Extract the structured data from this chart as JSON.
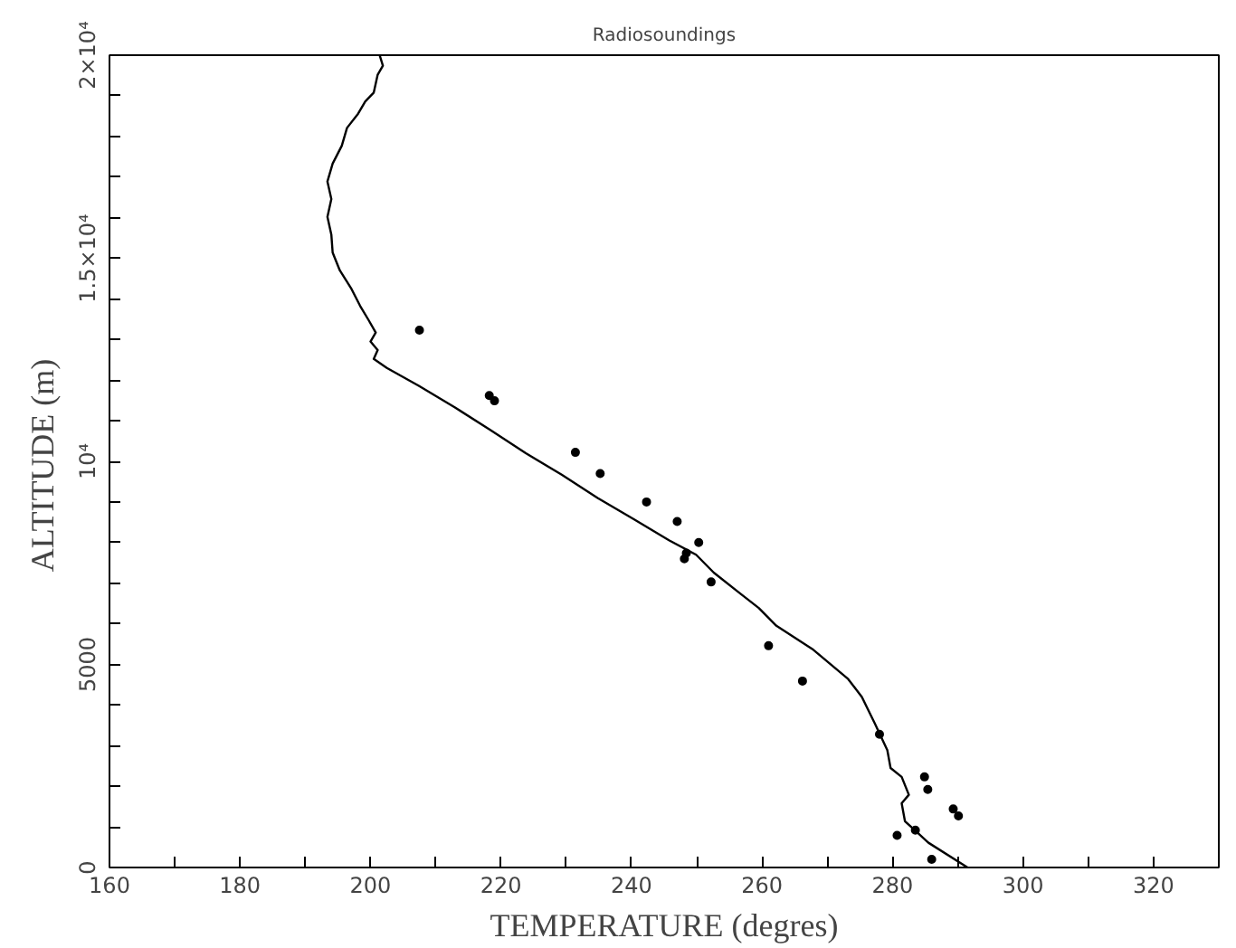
{
  "chart_data": {
    "type": "line",
    "title": "Radiosoundings",
    "xlabel": "TEMPERATURE (degres)",
    "ylabel": "ALTITUDE  (m)",
    "xlim": [
      160,
      330
    ],
    "ylim": [
      0,
      20000
    ],
    "xticks": [
      160,
      {
        "value": 170,
        "label": null
      },
      180,
      {
        "value": 190,
        "label": null
      },
      200,
      {
        "value": 210,
        "label": null
      },
      220,
      {
        "value": 230,
        "label": null
      },
      240,
      {
        "value": 250,
        "label": null
      },
      260,
      {
        "value": 270,
        "label": null
      },
      280,
      {
        "value": 290,
        "label": null
      },
      300,
      {
        "value": 310,
        "label": null
      },
      320
    ],
    "yticks": [
      0,
      {
        "value": 1000,
        "label": null
      },
      {
        "value": 2000,
        "label": null
      },
      {
        "value": 3000,
        "label": null
      },
      {
        "value": 4000,
        "label": null
      },
      5000,
      {
        "value": 6000,
        "label": null
      },
      {
        "value": 7000,
        "label": null
      },
      {
        "value": 8000,
        "label": null
      },
      {
        "value": 9000,
        "label": null
      },
      {
        "value": 10000,
        "label": "10⁴"
      },
      {
        "value": 11000,
        "label": null
      },
      {
        "value": 12000,
        "label": null
      },
      {
        "value": 13000,
        "label": null
      },
      {
        "value": 14000,
        "label": null
      },
      {
        "value": 15000,
        "label": "1.5×10⁴"
      },
      {
        "value": 16000,
        "label": null
      },
      {
        "value": 17000,
        "label": null
      },
      {
        "value": 18000,
        "label": null
      },
      {
        "value": 19000,
        "label": null
      },
      {
        "value": 20000,
        "label": "2×10⁴"
      }
    ],
    "grid": false,
    "series": [
      {
        "color": "#000000",
        "marker": "none",
        "line_style": "solid",
        "x": [
          201.4,
          201.9,
          201.1,
          200.5,
          199.2,
          198.1,
          196.4,
          195.6,
          194.2,
          193.4,
          194.0,
          193.4,
          194.0,
          194.2,
          195.3,
          197.0,
          198.4,
          199.7,
          200.8,
          200.0,
          201.1,
          200.5,
          202.5,
          207.4,
          212.9,
          218.4,
          223.8,
          229.3,
          234.8,
          240.3,
          245.8,
          249.9,
          252.6,
          256.7,
          259.5,
          262.2,
          267.7,
          273.2,
          275.3,
          277.3,
          279.2,
          279.7,
          281.4,
          282.5,
          281.4,
          281.9,
          285.5,
          291.5
        ],
        "values": [
          20000,
          19740,
          19520,
          19080,
          18860,
          18560,
          18210,
          17770,
          17330,
          16890,
          16460,
          16020,
          15580,
          15140,
          14700,
          14270,
          13830,
          13480,
          13170,
          12950,
          12740,
          12520,
          12300,
          11860,
          11330,
          10770,
          10200,
          9670,
          9100,
          8580,
          8050,
          7700,
          7260,
          6740,
          6390,
          5950,
          5380,
          4640,
          4200,
          3540,
          2890,
          2450,
          2230,
          1790,
          1580,
          1140,
          610,
          0
        ]
      },
      {
        "type": "scatter",
        "color": "#000000",
        "marker": "circle",
        "x": [
          207.5,
          218.2,
          219.0,
          231.4,
          235.2,
          242.3,
          247.0,
          250.3,
          248.4,
          248.1,
          252.2,
          261.0,
          266.2,
          278.0,
          280.7,
          283.5,
          284.9,
          285.4,
          289.3,
          290.1,
          286.0
        ],
        "values": [
          13230,
          11620,
          11490,
          10220,
          9700,
          9000,
          8520,
          8000,
          7740,
          7600,
          7030,
          5460,
          4590,
          3280,
          790,
          920,
          2230,
          1920,
          1440,
          1270,
          200
        ]
      }
    ]
  }
}
